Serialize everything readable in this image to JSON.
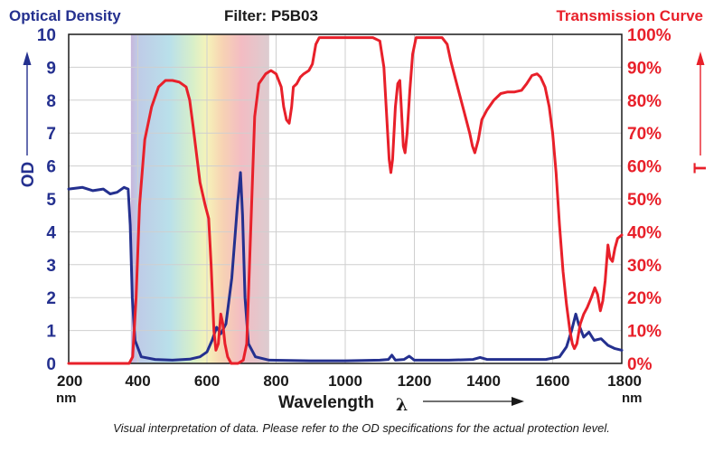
{
  "header": {
    "left_title": "Optical Density",
    "center_title": "Filter: P5B03",
    "right_title": "Transmission Curve"
  },
  "footnote": "Visual interpretation of data. Please refer to the OD specifications for the actual protection level.",
  "colors": {
    "od": "#24308f",
    "transmission": "#e8202a",
    "grid": "#cfcfcf",
    "text": "#1a1a1a"
  },
  "chart_data": {
    "type": "line",
    "xlabel": "Wavelength",
    "xlabel_symbol": "λ",
    "x_unit": "nm",
    "xlim": [
      200,
      1800
    ],
    "x_ticks": [
      "200",
      "400",
      "600",
      "800",
      "1000",
      "1200",
      "1400",
      "1600",
      "1800"
    ],
    "y_left": {
      "label": "OD",
      "lim": [
        0,
        10
      ],
      "ticks": [
        "0",
        "1",
        "2",
        "3",
        "4",
        "5",
        "6",
        "7",
        "8",
        "9",
        "10"
      ]
    },
    "y_right": {
      "label": "T",
      "lim": [
        0,
        100
      ],
      "ticks": [
        "0%",
        "10%",
        "20%",
        "30%",
        "40%",
        "50%",
        "60%",
        "70%",
        "80%",
        "90%",
        "100%"
      ]
    },
    "grid": true,
    "visible_spectrum_band": [
      380,
      780
    ],
    "series": [
      {
        "axis": "left",
        "points": [
          [
            200,
            5.3
          ],
          [
            240,
            5.35
          ],
          [
            270,
            5.25
          ],
          [
            300,
            5.3
          ],
          [
            320,
            5.15
          ],
          [
            340,
            5.2
          ],
          [
            360,
            5.35
          ],
          [
            372,
            5.3
          ],
          [
            378,
            4.2
          ],
          [
            384,
            2.0
          ],
          [
            392,
            0.7
          ],
          [
            410,
            0.2
          ],
          [
            450,
            0.12
          ],
          [
            500,
            0.1
          ],
          [
            550,
            0.13
          ],
          [
            580,
            0.2
          ],
          [
            600,
            0.35
          ],
          [
            615,
            0.7
          ],
          [
            628,
            1.1
          ],
          [
            640,
            0.9
          ],
          [
            655,
            1.2
          ],
          [
            672,
            2.6
          ],
          [
            688,
            4.8
          ],
          [
            697,
            5.8
          ],
          [
            703,
            4.5
          ],
          [
            710,
            2.0
          ],
          [
            720,
            0.6
          ],
          [
            740,
            0.2
          ],
          [
            780,
            0.1
          ],
          [
            900,
            0.08
          ],
          [
            1000,
            0.08
          ],
          [
            1100,
            0.1
          ],
          [
            1125,
            0.12
          ],
          [
            1135,
            0.25
          ],
          [
            1145,
            0.1
          ],
          [
            1170,
            0.12
          ],
          [
            1185,
            0.22
          ],
          [
            1200,
            0.1
          ],
          [
            1300,
            0.1
          ],
          [
            1370,
            0.12
          ],
          [
            1390,
            0.18
          ],
          [
            1410,
            0.12
          ],
          [
            1500,
            0.12
          ],
          [
            1580,
            0.12
          ],
          [
            1620,
            0.2
          ],
          [
            1640,
            0.5
          ],
          [
            1655,
            1.0
          ],
          [
            1667,
            1.5
          ],
          [
            1675,
            1.2
          ],
          [
            1690,
            0.8
          ],
          [
            1705,
            0.95
          ],
          [
            1720,
            0.7
          ],
          [
            1740,
            0.75
          ],
          [
            1760,
            0.55
          ],
          [
            1780,
            0.45
          ],
          [
            1800,
            0.4
          ]
        ]
      },
      {
        "axis": "right",
        "points": [
          [
            200,
            0
          ],
          [
            300,
            0
          ],
          [
            375,
            0
          ],
          [
            385,
            2
          ],
          [
            395,
            20
          ],
          [
            405,
            48
          ],
          [
            420,
            68
          ],
          [
            440,
            78
          ],
          [
            460,
            84
          ],
          [
            480,
            86
          ],
          [
            500,
            86
          ],
          [
            520,
            85.5
          ],
          [
            540,
            84
          ],
          [
            550,
            80
          ],
          [
            560,
            72
          ],
          [
            580,
            55
          ],
          [
            595,
            48
          ],
          [
            605,
            44
          ],
          [
            612,
            30
          ],
          [
            620,
            10
          ],
          [
            626,
            4
          ],
          [
            633,
            6
          ],
          [
            640,
            15
          ],
          [
            646,
            12
          ],
          [
            652,
            6
          ],
          [
            660,
            2
          ],
          [
            670,
            0
          ],
          [
            690,
            0
          ],
          [
            705,
            1
          ],
          [
            715,
            6
          ],
          [
            728,
            45
          ],
          [
            738,
            75
          ],
          [
            750,
            85
          ],
          [
            770,
            88
          ],
          [
            785,
            89
          ],
          [
            800,
            88
          ],
          [
            815,
            84
          ],
          [
            822,
            78
          ],
          [
            830,
            74
          ],
          [
            838,
            73
          ],
          [
            845,
            78
          ],
          [
            850,
            84
          ],
          [
            860,
            85
          ],
          [
            870,
            87
          ],
          [
            880,
            88
          ],
          [
            895,
            89
          ],
          [
            905,
            91
          ],
          [
            915,
            97
          ],
          [
            925,
            99
          ],
          [
            1000,
            99
          ],
          [
            1080,
            99
          ],
          [
            1100,
            98
          ],
          [
            1112,
            90
          ],
          [
            1120,
            75
          ],
          [
            1127,
            62
          ],
          [
            1132,
            58
          ],
          [
            1137,
            62
          ],
          [
            1145,
            78
          ],
          [
            1152,
            85
          ],
          [
            1158,
            86
          ],
          [
            1162,
            78
          ],
          [
            1168,
            66
          ],
          [
            1173,
            64
          ],
          [
            1179,
            70
          ],
          [
            1187,
            83
          ],
          [
            1195,
            94
          ],
          [
            1205,
            99
          ],
          [
            1280,
            99
          ],
          [
            1295,
            97
          ],
          [
            1305,
            92
          ],
          [
            1315,
            88
          ],
          [
            1330,
            82
          ],
          [
            1345,
            76
          ],
          [
            1360,
            70
          ],
          [
            1368,
            66
          ],
          [
            1375,
            64
          ],
          [
            1385,
            68
          ],
          [
            1395,
            74
          ],
          [
            1410,
            77
          ],
          [
            1430,
            80
          ],
          [
            1450,
            82
          ],
          [
            1470,
            82.5
          ],
          [
            1490,
            82.5
          ],
          [
            1510,
            83
          ],
          [
            1525,
            85
          ],
          [
            1540,
            87.5
          ],
          [
            1555,
            88
          ],
          [
            1565,
            87
          ],
          [
            1578,
            84
          ],
          [
            1590,
            78
          ],
          [
            1600,
            70
          ],
          [
            1610,
            58
          ],
          [
            1620,
            42
          ],
          [
            1630,
            28
          ],
          [
            1640,
            18
          ],
          [
            1650,
            10
          ],
          [
            1657,
            6
          ],
          [
            1663,
            4.5
          ],
          [
            1670,
            6
          ],
          [
            1680,
            12
          ],
          [
            1690,
            15
          ],
          [
            1700,
            17
          ],
          [
            1712,
            20
          ],
          [
            1722,
            23
          ],
          [
            1730,
            21
          ],
          [
            1738,
            16
          ],
          [
            1745,
            19
          ],
          [
            1752,
            25
          ],
          [
            1760,
            36
          ],
          [
            1766,
            32
          ],
          [
            1773,
            31
          ],
          [
            1780,
            35
          ],
          [
            1788,
            38
          ],
          [
            1800,
            39
          ]
        ]
      }
    ]
  }
}
